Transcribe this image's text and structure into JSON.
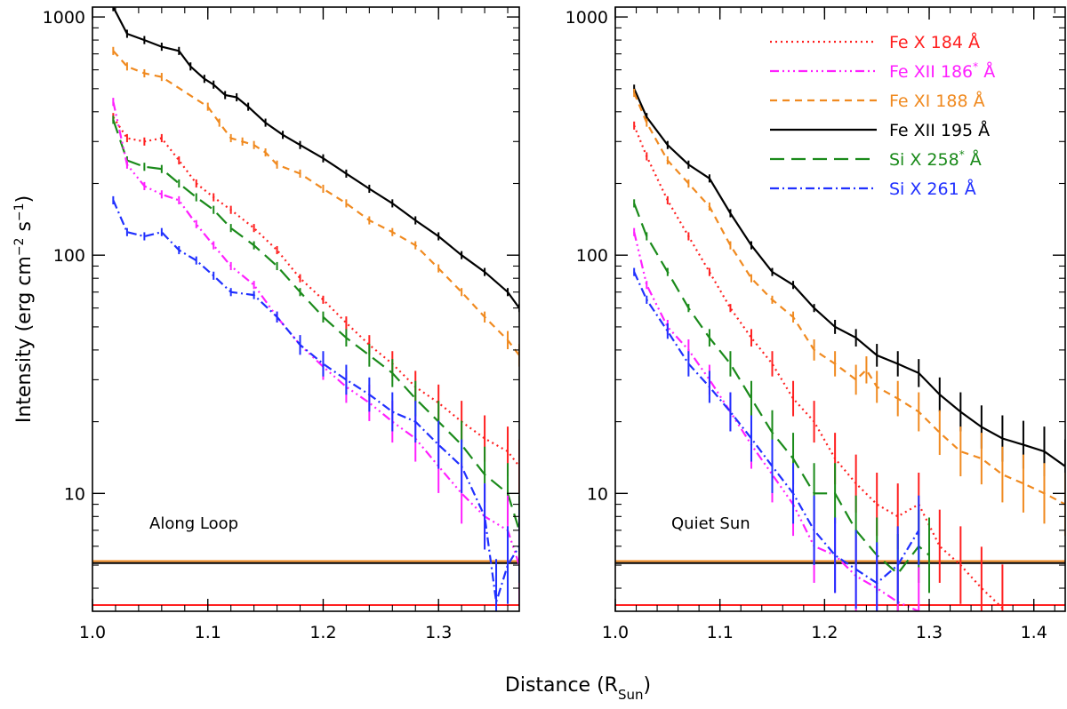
{
  "figure": {
    "ylabel": "Intensity (erg cm",
    "ylabel_sup1": "−2",
    "ylabel_mid": " s",
    "ylabel_sup2": "−1",
    "ylabel_end": ")",
    "xlabel": "Distance (R",
    "xlabel_sub": "Sun",
    "xlabel_end": ")"
  },
  "legend": [
    {
      "key": "fe10_184",
      "text": "Fe X 184 Å",
      "sup": "",
      "color": "#ff2020",
      "dash": "2,4"
    },
    {
      "key": "fe12_186",
      "text": "Fe XII 186",
      "sup": "*",
      "tail": " Å",
      "color": "#ff20ff",
      "dash": "10,4,2,4,2,4,2,4"
    },
    {
      "key": "fe11_188",
      "text": "Fe XI 188 Å",
      "sup": "",
      "color": "#f08a20",
      "dash": "8,6"
    },
    {
      "key": "fe12_195",
      "text": "Fe XII 195 Å",
      "sup": "",
      "color": "#000000",
      "dash": ""
    },
    {
      "key": "si10_258",
      "text": "Si X 258",
      "sup": "*",
      "tail": " Å",
      "color": "#1a8a1a",
      "dash": "16,8"
    },
    {
      "key": "si10_261",
      "text": "Si X 261 Å",
      "sup": "",
      "color": "#2030ff",
      "dash": "10,4,2,4"
    }
  ],
  "chart_data": [
    {
      "type": "line",
      "panel_label": "Along Loop",
      "xlabel": "Distance (R_Sun)",
      "ylabel": "Intensity (erg cm^-2 s^-1)",
      "yscale": "log",
      "xlim": [
        1.0,
        1.37
      ],
      "ylim": [
        3.2,
        1100
      ],
      "xticks": [
        1.0,
        1.1,
        1.2,
        1.3
      ],
      "xtick_labels": [
        "1.0",
        "1.1",
        "1.2",
        "1.3"
      ],
      "yticks": [
        10,
        100,
        1000
      ],
      "ytick_labels": [
        "10",
        "100",
        "1000"
      ],
      "hlines": [
        {
          "y": 5.2,
          "color": "#f08a20"
        },
        {
          "y": 5.1,
          "color": "#000000"
        },
        {
          "y": 3.4,
          "color": "#ff2020"
        }
      ],
      "series": [
        {
          "key": "fe12_195",
          "name": "Fe XII 195 Å",
          "x": [
            1.018,
            1.03,
            1.045,
            1.06,
            1.075,
            1.085,
            1.097,
            1.105,
            1.115,
            1.125,
            1.135,
            1.15,
            1.165,
            1.18,
            1.2,
            1.22,
            1.24,
            1.26,
            1.28,
            1.3,
            1.32,
            1.34,
            1.36,
            1.37
          ],
          "y": [
            1100,
            850,
            800,
            750,
            720,
            620,
            550,
            520,
            470,
            460,
            420,
            360,
            320,
            290,
            255,
            220,
            190,
            165,
            140,
            120,
            100,
            85,
            70,
            60
          ]
        },
        {
          "key": "fe11_188",
          "name": "Fe XI 188 Å",
          "x": [
            1.018,
            1.03,
            1.045,
            1.06,
            1.1,
            1.11,
            1.12,
            1.13,
            1.14,
            1.15,
            1.16,
            1.18,
            1.2,
            1.22,
            1.24,
            1.26,
            1.28,
            1.3,
            1.32,
            1.34,
            1.36,
            1.37
          ],
          "y": [
            720,
            620,
            580,
            560,
            420,
            360,
            310,
            300,
            290,
            270,
            240,
            220,
            190,
            165,
            140,
            125,
            110,
            88,
            70,
            55,
            44,
            38
          ]
        },
        {
          "key": "fe10_184",
          "name": "Fe X 184 Å",
          "x": [
            1.018,
            1.03,
            1.045,
            1.06,
            1.075,
            1.09,
            1.105,
            1.12,
            1.14,
            1.16,
            1.18,
            1.2,
            1.22,
            1.24,
            1.26,
            1.28,
            1.3,
            1.32,
            1.34,
            1.36,
            1.37
          ],
          "y": [
            380,
            310,
            300,
            310,
            250,
            200,
            175,
            155,
            130,
            105,
            80,
            65,
            52,
            42,
            35,
            28,
            24,
            20,
            17,
            15,
            13
          ]
        },
        {
          "key": "si10_258",
          "name": "Si X 258* Å",
          "x": [
            1.018,
            1.03,
            1.045,
            1.06,
            1.075,
            1.09,
            1.105,
            1.12,
            1.14,
            1.16,
            1.18,
            1.2,
            1.22,
            1.24,
            1.26,
            1.28,
            1.3,
            1.32,
            1.34,
            1.36,
            1.37
          ],
          "y": [
            370,
            250,
            235,
            230,
            200,
            175,
            155,
            130,
            110,
            90,
            70,
            55,
            45,
            38,
            32,
            25,
            20,
            16,
            12,
            10,
            7
          ]
        },
        {
          "key": "fe12_186",
          "name": "Fe XII 186* Å",
          "x": [
            1.018,
            1.03,
            1.045,
            1.06,
            1.075,
            1.09,
            1.105,
            1.12,
            1.14,
            1.16,
            1.18,
            1.2,
            1.22,
            1.24,
            1.26,
            1.28,
            1.3,
            1.32,
            1.34,
            1.36,
            1.37
          ],
          "y": [
            440,
            240,
            195,
            180,
            170,
            135,
            110,
            90,
            75,
            55,
            42,
            34,
            28,
            24,
            20,
            17,
            13,
            10,
            8,
            7,
            5
          ]
        },
        {
          "key": "si10_261",
          "name": "Si X 261 Å",
          "x": [
            1.018,
            1.03,
            1.045,
            1.06,
            1.075,
            1.09,
            1.105,
            1.12,
            1.14,
            1.16,
            1.18,
            1.2,
            1.22,
            1.24,
            1.26,
            1.28,
            1.3,
            1.32,
            1.34,
            1.35,
            1.36,
            1.37
          ],
          "y": [
            170,
            125,
            120,
            125,
            105,
            95,
            82,
            70,
            68,
            55,
            42,
            35,
            30,
            26,
            22,
            20,
            16,
            13,
            8,
            3.5,
            5,
            6
          ]
        }
      ]
    },
    {
      "type": "line",
      "panel_label": "Quiet Sun",
      "xlabel": "Distance (R_Sun)",
      "ylabel": "Intensity (erg cm^-2 s^-1)",
      "yscale": "log",
      "xlim": [
        1.0,
        1.43
      ],
      "ylim": [
        3.2,
        1100
      ],
      "xticks": [
        1.0,
        1.1,
        1.2,
        1.3,
        1.4
      ],
      "xtick_labels": [
        "1.0",
        "1.1",
        "1.2",
        "1.3",
        "1.4"
      ],
      "yticks": [
        10,
        100,
        1000
      ],
      "ytick_labels": [
        "10",
        "100",
        "1000"
      ],
      "hlines": [
        {
          "y": 5.2,
          "color": "#f08a20"
        },
        {
          "y": 5.1,
          "color": "#000000"
        },
        {
          "y": 3.4,
          "color": "#ff2020"
        }
      ],
      "series": [
        {
          "key": "fe12_195",
          "name": "Fe XII 195 Å",
          "x": [
            1.018,
            1.03,
            1.05,
            1.07,
            1.09,
            1.11,
            1.13,
            1.15,
            1.17,
            1.19,
            1.21,
            1.23,
            1.25,
            1.27,
            1.29,
            1.31,
            1.33,
            1.35,
            1.37,
            1.39,
            1.41,
            1.43
          ],
          "y": [
            500,
            380,
            290,
            240,
            210,
            150,
            110,
            85,
            75,
            60,
            50,
            45,
            38,
            35,
            32,
            26,
            22,
            19,
            17,
            16,
            15,
            13
          ]
        },
        {
          "key": "fe11_188",
          "name": "Fe XI 188 Å",
          "x": [
            1.018,
            1.03,
            1.05,
            1.07,
            1.09,
            1.11,
            1.13,
            1.15,
            1.17,
            1.19,
            1.21,
            1.23,
            1.24,
            1.25,
            1.27,
            1.29,
            1.31,
            1.33,
            1.35,
            1.37,
            1.39,
            1.41,
            1.43
          ],
          "y": [
            480,
            360,
            250,
            200,
            160,
            110,
            80,
            65,
            55,
            40,
            35,
            30,
            33,
            28,
            25,
            22,
            18,
            15,
            14,
            12,
            11,
            10,
            9
          ]
        },
        {
          "key": "fe10_184",
          "name": "Fe X 184 Å",
          "x": [
            1.018,
            1.03,
            1.05,
            1.07,
            1.09,
            1.11,
            1.13,
            1.15,
            1.17,
            1.19,
            1.21,
            1.23,
            1.25,
            1.27,
            1.29,
            1.31,
            1.33,
            1.35,
            1.37
          ],
          "y": [
            350,
            260,
            170,
            120,
            85,
            60,
            45,
            35,
            25,
            20,
            14,
            11,
            9,
            8,
            9,
            6,
            5,
            4,
            3.3
          ]
        },
        {
          "key": "si10_258",
          "name": "Si X 258* Å",
          "x": [
            1.018,
            1.03,
            1.05,
            1.07,
            1.09,
            1.11,
            1.13,
            1.15,
            1.17,
            1.19,
            1.21,
            1.23,
            1.25,
            1.27,
            1.29,
            1.3
          ],
          "y": [
            165,
            120,
            85,
            60,
            45,
            35,
            25,
            18,
            14,
            10,
            10,
            7,
            5.5,
            4.6,
            6,
            5.5
          ]
        },
        {
          "key": "fe12_186",
          "name": "Fe XII 186* Å",
          "x": [
            1.018,
            1.03,
            1.05,
            1.07,
            1.09,
            1.11,
            1.13,
            1.15,
            1.17,
            1.19,
            1.21,
            1.23,
            1.25,
            1.27,
            1.29
          ],
          "y": [
            125,
            75,
            50,
            40,
            30,
            22,
            16,
            12,
            9,
            6,
            5.5,
            4.5,
            4,
            3.5,
            3.2
          ]
        },
        {
          "key": "si10_261",
          "name": "Si X 261 Å",
          "x": [
            1.018,
            1.03,
            1.05,
            1.07,
            1.09,
            1.11,
            1.13,
            1.15,
            1.17,
            1.19,
            1.21,
            1.23,
            1.25,
            1.27,
            1.29
          ],
          "y": [
            85,
            65,
            48,
            35,
            28,
            22,
            17,
            13,
            10,
            7,
            5.5,
            4.8,
            4.2,
            5,
            7
          ]
        }
      ]
    }
  ]
}
